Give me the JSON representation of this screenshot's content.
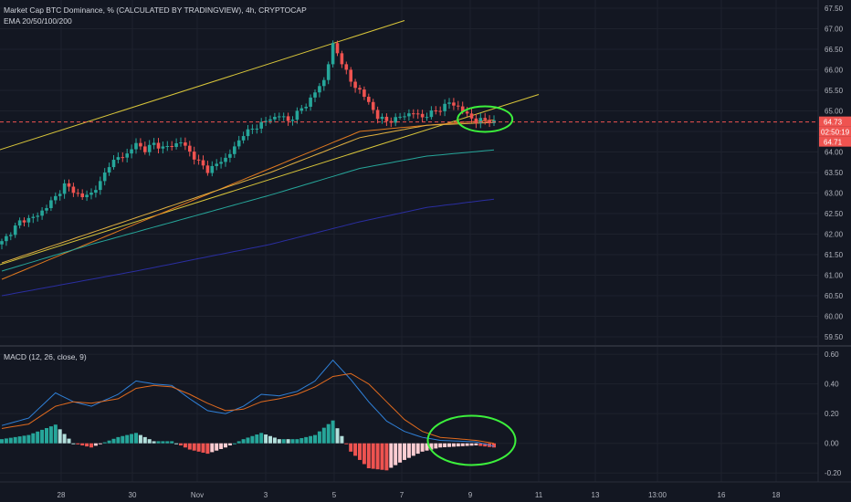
{
  "main_pane": {
    "legend_title": "Market Cap BTC Dominance, % (CALCULATED BY TRADINGVIEW), 4h, CRYPTOCAP",
    "legend_ema": "EMA 20/50/100/200"
  },
  "macd_pane": {
    "legend": "MACD (12, 26, close, 9)"
  },
  "colors": {
    "background": "#131722",
    "grid": "#1e222d",
    "up": "#26a69a",
    "down": "#ef5350",
    "channel": "#d9c63a",
    "ema20": "#e0791f",
    "ema50": "#e0b040",
    "ema100": "#26a69a",
    "ema200": "#2a2ea0",
    "macd_line": "#2f80d8",
    "signal_line": "#e06a1e",
    "annotation": "#3cf03c",
    "price_line": "#ef5350"
  },
  "chart_data": [
    {
      "type": "candlestick",
      "title": "Market Cap BTC Dominance, % (CALCULATED BY TRADINGVIEW), 4h, CRYPTOCAP",
      "x_ticks": [
        "28",
        "30",
        "Nov",
        "3",
        "5",
        "7",
        "9",
        "11",
        "13",
        "13:00",
        "16",
        "18"
      ],
      "y_ticks": [
        59.5,
        60.0,
        60.5,
        61.0,
        61.5,
        62.0,
        62.5,
        63.0,
        63.5,
        64.0,
        64.5,
        65.0,
        65.5,
        66.0,
        66.5,
        67.0,
        67.5
      ],
      "ylim": [
        59.3,
        67.7
      ],
      "price_labels": {
        "last": "64.73",
        "countdown": "02:50:19",
        "low": "64.71"
      },
      "last_price": 64.73,
      "close_waypoints": [
        [
          0,
          61.8
        ],
        [
          4,
          62.3
        ],
        [
          8,
          62.45
        ],
        [
          12,
          62.9
        ],
        [
          14,
          63.2
        ],
        [
          16,
          63.05
        ],
        [
          18,
          62.9
        ],
        [
          20,
          63.0
        ],
        [
          22,
          63.25
        ],
        [
          24,
          63.7
        ],
        [
          26,
          63.85
        ],
        [
          28,
          63.95
        ],
        [
          30,
          64.2
        ],
        [
          32,
          64.05
        ],
        [
          34,
          64.2
        ],
        [
          36,
          64.1
        ],
        [
          38,
          64.15
        ],
        [
          40,
          64.25
        ],
        [
          42,
          64.0
        ],
        [
          44,
          63.75
        ],
        [
          46,
          63.55
        ],
        [
          48,
          63.7
        ],
        [
          50,
          63.85
        ],
        [
          52,
          64.1
        ],
        [
          54,
          64.45
        ],
        [
          56,
          64.55
        ],
        [
          58,
          64.7
        ],
        [
          60,
          64.8
        ],
        [
          62,
          64.9
        ],
        [
          64,
          64.75
        ],
        [
          66,
          64.95
        ],
        [
          68,
          65.15
        ],
        [
          70,
          65.45
        ],
        [
          72,
          65.75
        ],
        [
          74,
          66.6
        ],
        [
          76,
          66.2
        ],
        [
          78,
          65.7
        ],
        [
          80,
          65.5
        ],
        [
          82,
          65.2
        ],
        [
          84,
          64.85
        ],
        [
          86,
          64.75
        ],
        [
          88,
          64.8
        ],
        [
          90,
          64.9
        ],
        [
          92,
          64.95
        ],
        [
          94,
          64.85
        ],
        [
          96,
          64.95
        ],
        [
          98,
          65.05
        ],
        [
          100,
          65.2
        ],
        [
          102,
          65.1
        ],
        [
          104,
          64.9
        ],
        [
          106,
          64.75
        ],
        [
          108,
          64.78
        ],
        [
          110,
          64.73
        ]
      ],
      "emas": [
        {
          "name": "EMA 20",
          "points": [
            [
              0,
              60.9
            ],
            [
              40,
              62.7
            ],
            [
              60,
              63.6
            ],
            [
              80,
              64.5
            ],
            [
              95,
              64.65
            ],
            [
              110,
              64.78
            ]
          ]
        },
        {
          "name": "EMA 50",
          "points": [
            [
              0,
              61.3
            ],
            [
              30,
              62.4
            ],
            [
              60,
              63.5
            ],
            [
              80,
              64.35
            ],
            [
              95,
              64.65
            ],
            [
              110,
              64.72
            ]
          ]
        },
        {
          "name": "EMA 100",
          "points": [
            [
              0,
              61.1
            ],
            [
              20,
              61.75
            ],
            [
              40,
              62.35
            ],
            [
              60,
              62.95
            ],
            [
              80,
              63.6
            ],
            [
              95,
              63.9
            ],
            [
              110,
              64.05
            ]
          ]
        },
        {
          "name": "EMA 200",
          "points": [
            [
              0,
              60.5
            ],
            [
              30,
              61.1
            ],
            [
              60,
              61.75
            ],
            [
              80,
              62.3
            ],
            [
              95,
              62.65
            ],
            [
              110,
              62.85
            ]
          ]
        }
      ],
      "channel_lines": [
        {
          "from": [
            -2,
            64.0
          ],
          "to": [
            90,
            67.2
          ]
        },
        {
          "from": [
            -2,
            61.2
          ],
          "to": [
            120,
            65.4
          ]
        }
      ]
    },
    {
      "type": "macd",
      "title": "MACD (12, 26, close, 9)",
      "y_ticks": [
        0.6,
        0.4,
        0.2,
        0.0,
        -0.2
      ],
      "ylim": [
        -0.26,
        0.65
      ],
      "macd_waypoints": [
        [
          0,
          0.12
        ],
        [
          6,
          0.17
        ],
        [
          12,
          0.34
        ],
        [
          16,
          0.28
        ],
        [
          20,
          0.25
        ],
        [
          26,
          0.33
        ],
        [
          30,
          0.42
        ],
        [
          34,
          0.4
        ],
        [
          38,
          0.39
        ],
        [
          42,
          0.3
        ],
        [
          46,
          0.22
        ],
        [
          50,
          0.2
        ],
        [
          54,
          0.25
        ],
        [
          58,
          0.33
        ],
        [
          62,
          0.32
        ],
        [
          66,
          0.35
        ],
        [
          70,
          0.42
        ],
        [
          74,
          0.56
        ],
        [
          78,
          0.43
        ],
        [
          82,
          0.28
        ],
        [
          86,
          0.15
        ],
        [
          90,
          0.08
        ],
        [
          94,
          0.04
        ],
        [
          98,
          0.02
        ],
        [
          102,
          0.015
        ],
        [
          106,
          0.01
        ],
        [
          110,
          -0.02
        ]
      ],
      "signal_waypoints": [
        [
          0,
          0.1
        ],
        [
          6,
          0.13
        ],
        [
          12,
          0.25
        ],
        [
          16,
          0.28
        ],
        [
          20,
          0.27
        ],
        [
          26,
          0.3
        ],
        [
          30,
          0.37
        ],
        [
          34,
          0.39
        ],
        [
          38,
          0.38
        ],
        [
          42,
          0.33
        ],
        [
          46,
          0.27
        ],
        [
          50,
          0.22
        ],
        [
          54,
          0.23
        ],
        [
          58,
          0.28
        ],
        [
          62,
          0.3
        ],
        [
          66,
          0.33
        ],
        [
          70,
          0.38
        ],
        [
          74,
          0.45
        ],
        [
          78,
          0.47
        ],
        [
          82,
          0.4
        ],
        [
          86,
          0.28
        ],
        [
          90,
          0.16
        ],
        [
          94,
          0.08
        ],
        [
          98,
          0.04
        ],
        [
          102,
          0.03
        ],
        [
          106,
          0.02
        ],
        [
          110,
          0.0
        ]
      ]
    }
  ],
  "annotations": {
    "main_circle": {
      "bar": 108,
      "value": 64.8
    },
    "macd_circle": {
      "bar": 105,
      "value": 0.02
    }
  }
}
